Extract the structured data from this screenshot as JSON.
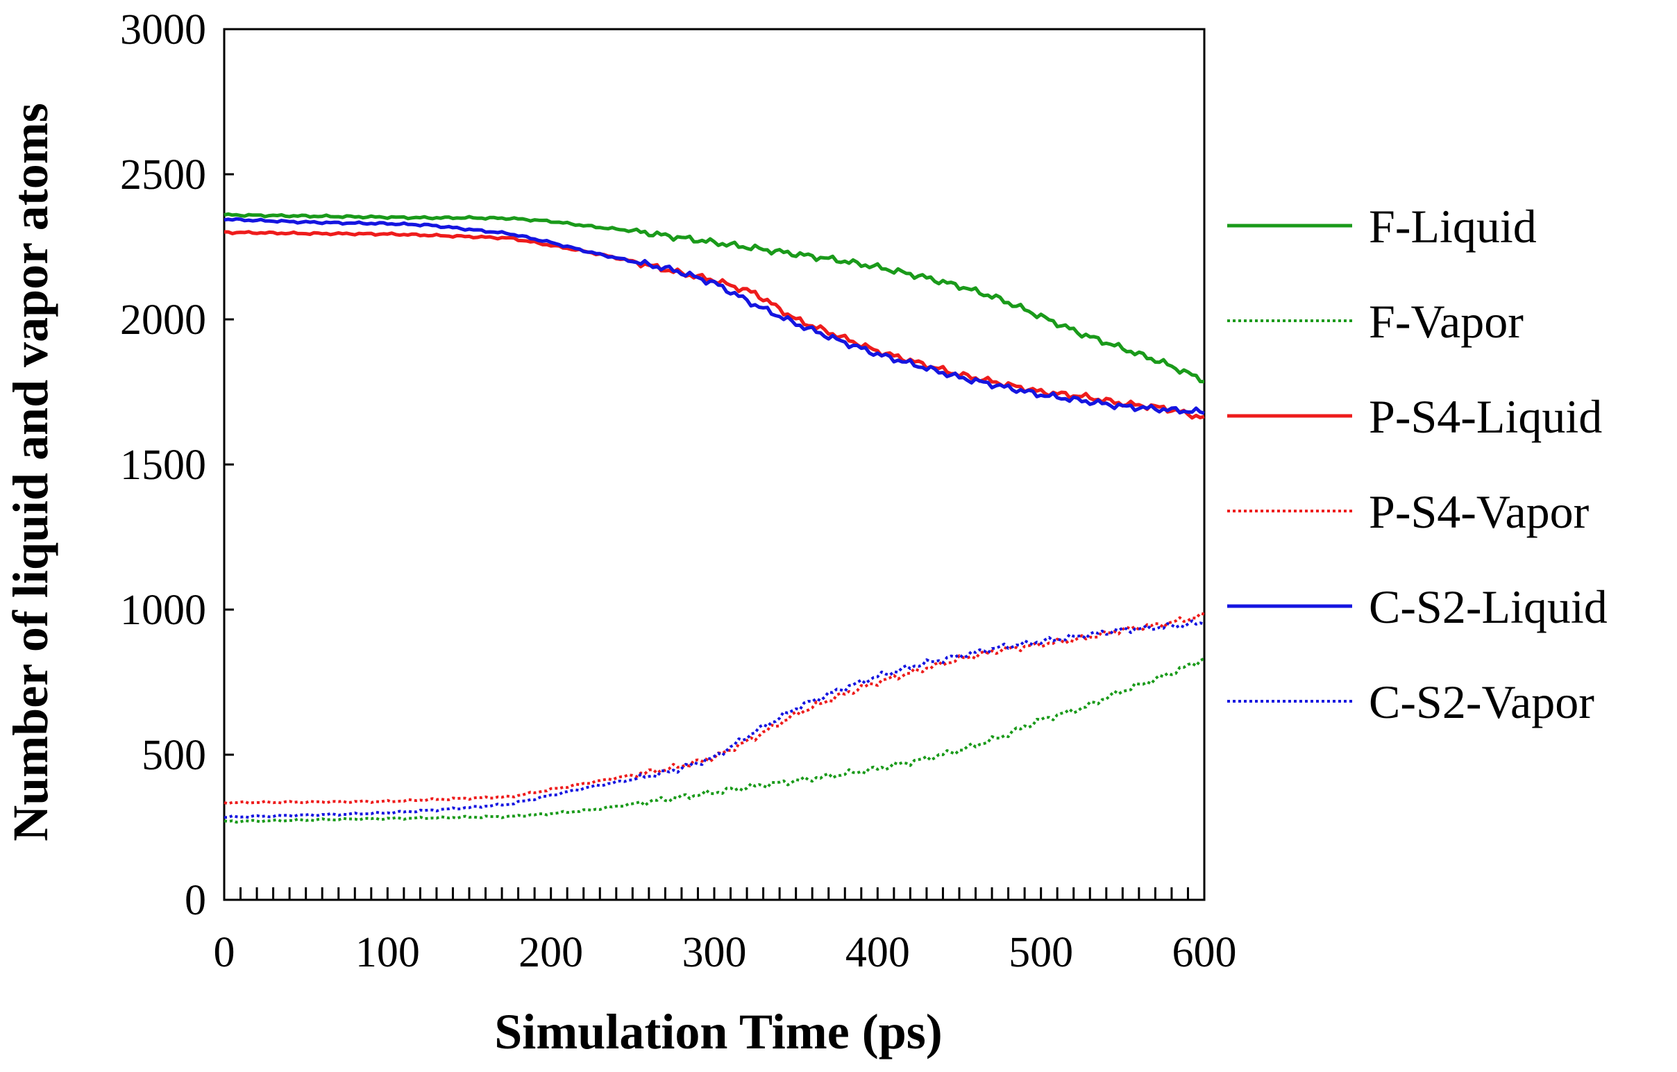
{
  "chart_data": {
    "type": "line",
    "title": "",
    "xlabel": "Simulation Time (ps)",
    "ylabel": "Number of liquid and vapor atoms",
    "xlim": [
      0,
      600
    ],
    "ylim": [
      0,
      3000
    ],
    "xticks": [
      0,
      100,
      200,
      300,
      400,
      500,
      600
    ],
    "yticks": [
      0,
      500,
      1000,
      1500,
      2000,
      2500,
      3000
    ],
    "grid": false,
    "legend_position": "right",
    "x": [
      0,
      25,
      50,
      75,
      100,
      125,
      150,
      175,
      200,
      225,
      250,
      275,
      300,
      325,
      350,
      375,
      400,
      425,
      450,
      475,
      500,
      525,
      550,
      575,
      600
    ],
    "series": [
      {
        "name": "F-Liquid",
        "color": "#1a9a1a",
        "style": "solid",
        "values": [
          2360,
          2358,
          2356,
          2354,
          2352,
          2350,
          2350,
          2348,
          2338,
          2320,
          2305,
          2285,
          2265,
          2245,
          2225,
          2205,
          2180,
          2150,
          2115,
          2070,
          2010,
          1950,
          1900,
          1850,
          1790
        ]
      },
      {
        "name": "F-Vapor",
        "color": "#1a9a1a",
        "style": "dotted",
        "values": [
          270,
          272,
          275,
          278,
          280,
          282,
          285,
          287,
          297,
          310,
          330,
          350,
          370,
          392,
          410,
          430,
          452,
          480,
          515,
          560,
          620,
          660,
          720,
          770,
          830
        ]
      },
      {
        "name": "P-S4-Liquid",
        "color": "#ee1c1c",
        "style": "solid",
        "values": [
          2300,
          2298,
          2296,
          2295,
          2294,
          2290,
          2285,
          2280,
          2255,
          2230,
          2200,
          2165,
          2135,
          2090,
          2000,
          1945,
          1890,
          1850,
          1810,
          1780,
          1750,
          1735,
          1710,
          1695,
          1660
        ]
      },
      {
        "name": "P-S4-Vapor",
        "color": "#ee1c1c",
        "style": "dotted",
        "values": [
          335,
          336,
          337,
          338,
          339,
          345,
          350,
          355,
          380,
          405,
          430,
          455,
          490,
          560,
          640,
          700,
          750,
          790,
          830,
          860,
          880,
          900,
          930,
          950,
          980
        ]
      },
      {
        "name": "C-S2-Liquid",
        "color": "#1515e0",
        "style": "solid",
        "values": [
          2345,
          2340,
          2335,
          2332,
          2330,
          2325,
          2310,
          2295,
          2265,
          2230,
          2200,
          2170,
          2125,
          2050,
          1985,
          1930,
          1880,
          1840,
          1800,
          1770,
          1740,
          1720,
          1700,
          1690,
          1680
        ]
      },
      {
        "name": "C-S2-Vapor",
        "color": "#1515e0",
        "style": "dotted",
        "values": [
          285,
          288,
          292,
          295,
          300,
          308,
          318,
          330,
          360,
          390,
          415,
          445,
          490,
          580,
          660,
          720,
          770,
          810,
          840,
          870,
          890,
          910,
          930,
          940,
          955
        ]
      }
    ]
  }
}
